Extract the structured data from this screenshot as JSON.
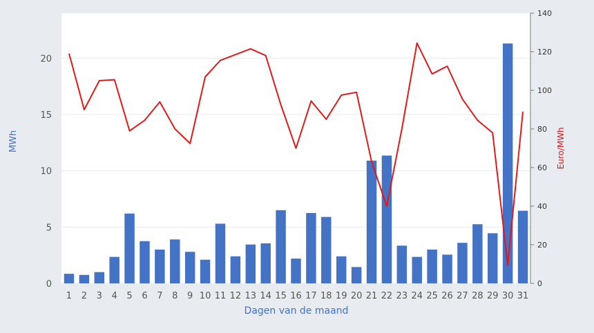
{
  "chart_data": {
    "type": "bar+line",
    "title": "",
    "xlabel": "Dagen van de maand",
    "ylabel_left": "MWh",
    "ylabel_right": "Euro/MWh",
    "categories": [
      "1",
      "2",
      "3",
      "4",
      "5",
      "6",
      "7",
      "8",
      "9",
      "10",
      "11",
      "12",
      "13",
      "14",
      "15",
      "16",
      "17",
      "18",
      "19",
      "20",
      "21",
      "22",
      "23",
      "24",
      "25",
      "26",
      "27",
      "28",
      "29",
      "30",
      "31"
    ],
    "ylim_left": [
      0,
      24
    ],
    "yticks_left": [
      0,
      5,
      10,
      15,
      20
    ],
    "ylim_right": [
      0,
      140
    ],
    "yticks_right": [
      0,
      20,
      40,
      60,
      80,
      100,
      120,
      140
    ],
    "grid": true,
    "series": [
      {
        "kind": "bar",
        "axis": "left",
        "values": [
          0.85,
          0.75,
          1.0,
          2.35,
          6.2,
          3.75,
          3.0,
          3.9,
          2.8,
          2.1,
          5.3,
          2.4,
          3.45,
          3.55,
          6.5,
          2.2,
          6.25,
          5.9,
          2.4,
          1.45,
          10.9,
          11.35,
          3.35,
          2.35,
          3.0,
          2.55,
          3.6,
          5.25,
          4.45,
          21.3,
          6.45
        ],
        "color": "#4472c4"
      },
      {
        "kind": "line",
        "axis": "right",
        "values": [
          119,
          90,
          105,
          105.5,
          79,
          84.5,
          94,
          80,
          72.5,
          107,
          115.5,
          118.5,
          121.5,
          118,
          92.5,
          70,
          94.5,
          85,
          97.5,
          99,
          63,
          40,
          80,
          124.5,
          108.5,
          112.5,
          95.5,
          84.5,
          78,
          9.5,
          89
        ],
        "color": "#e01919"
      }
    ]
  }
}
